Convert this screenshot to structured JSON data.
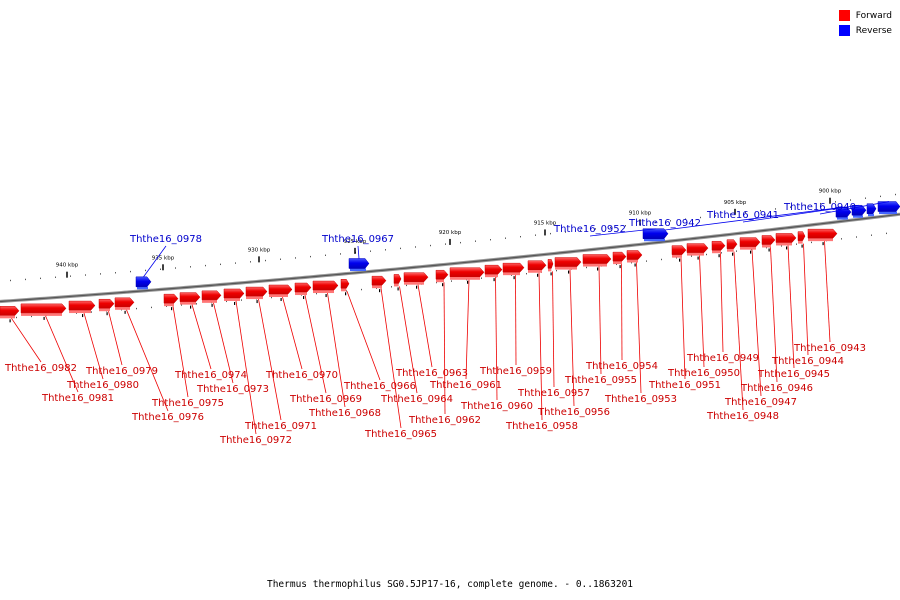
{
  "legend": {
    "items": [
      {
        "label": "Forward",
        "color": "#ff0000"
      },
      {
        "label": "Reverse",
        "color": "#0000ff"
      }
    ]
  },
  "caption": "Thermus thermophilus SG0.5JP17-16, complete genome. - 0..1863201",
  "colors": {
    "forward": "#ee0000",
    "forward_light": "#ff5555",
    "reverse": "#0000ee",
    "reverse_light": "#3344ff",
    "backbone": "#777777",
    "forward_label": "#cc0000",
    "reverse_label": "#0000cc"
  },
  "ticks": [
    "940 kbp",
    "935 kbp",
    "930 kbp",
    "925 kbp",
    "920 kbp",
    "915 kbp",
    "910 kbp",
    "905 kbp",
    "900 kbp"
  ],
  "reverse_genes": [
    "Ththe16_0978",
    "Ththe16_0967",
    "Ththe16_0952",
    "Ththe16_0942",
    "Ththe16_0941",
    "Ththe16_0940"
  ],
  "forward_genes": [
    "Ththe16_0982",
    "Ththe16_0981",
    "Ththe16_0980",
    "Ththe16_0979",
    "Ththe16_0976",
    "Ththe16_0975",
    "Ththe16_0974",
    "Ththe16_0973",
    "Ththe16_0972",
    "Ththe16_0971",
    "Ththe16_0970",
    "Ththe16_0969",
    "Ththe16_0968",
    "Ththe16_0966",
    "Ththe16_0965",
    "Ththe16_0964",
    "Ththe16_0963",
    "Ththe16_0962",
    "Ththe16_0961",
    "Ththe16_0960",
    "Ththe16_0959",
    "Ththe16_0958",
    "Ththe16_0957",
    "Ththe16_0956",
    "Ththe16_0955",
    "Ththe16_0954",
    "Ththe16_0953",
    "Ththe16_0951",
    "Ththe16_0950",
    "Ththe16_0949",
    "Ththe16_0948",
    "Ththe16_0947",
    "Ththe16_0946",
    "Ththe16_0945",
    "Ththe16_0944",
    "Ththe16_0943"
  ]
}
